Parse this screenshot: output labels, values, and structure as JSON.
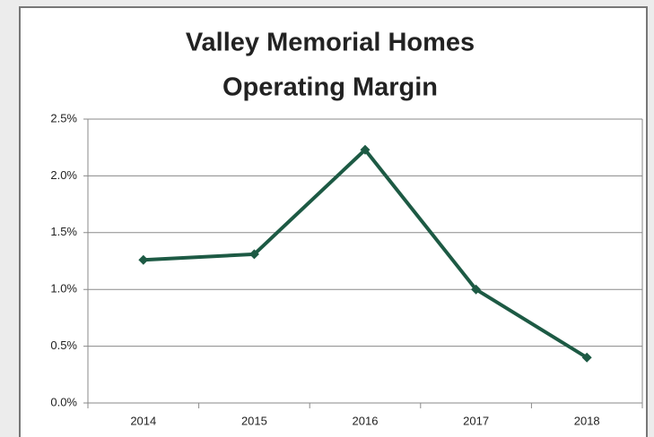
{
  "chart_data": {
    "type": "line",
    "title": [
      "Valley Memorial Homes",
      "Operating Margin"
    ],
    "categories": [
      "2014",
      "2015",
      "2016",
      "2017",
      "2018"
    ],
    "series": [
      {
        "name": "Operating Margin",
        "color": "#1d5a44",
        "values": [
          1.26,
          1.31,
          2.23,
          1.0,
          0.4
        ]
      }
    ],
    "ylim": [
      0,
      2.5
    ],
    "yticks": [
      {
        "value": 0,
        "label": "0.0%"
      },
      {
        "value": 0.5,
        "label": "0.5%"
      },
      {
        "value": 1,
        "label": "1.0%"
      },
      {
        "value": 1.5,
        "label": "1.5%"
      },
      {
        "value": 2,
        "label": "2.0%"
      },
      {
        "value": 2.5,
        "label": "2.5%"
      }
    ],
    "grid": true,
    "title_color": "#1e5a3c"
  }
}
